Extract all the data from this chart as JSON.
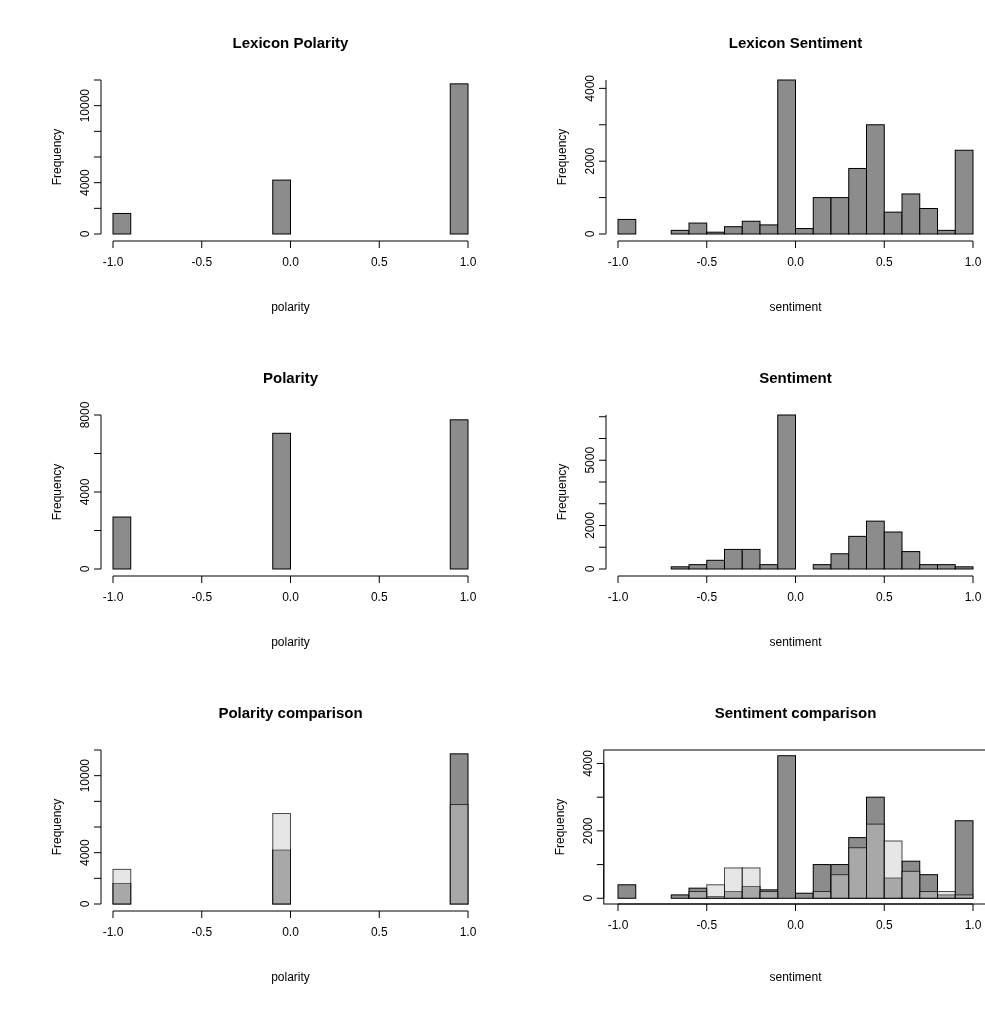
{
  "chart_data": [
    {
      "type": "histogram",
      "title": "Lexicon Polarity",
      "xlabel": "polarity",
      "ylabel": "Frequency",
      "bins": [
        -1,
        -0.9,
        -0.8,
        -0.7,
        -0.6,
        -0.5,
        -0.4,
        -0.3,
        -0.2,
        -0.1,
        0,
        0.1,
        0.2,
        0.3,
        0.4,
        0.5,
        0.6,
        0.7,
        0.8,
        0.9,
        1
      ],
      "values": [
        1600,
        0,
        0,
        0,
        0,
        0,
        0,
        0,
        0,
        4200,
        0,
        0,
        0,
        0,
        0,
        0,
        0,
        0,
        0,
        11700
      ],
      "color": "#8c8c8c",
      "xlim": [
        -1,
        1
      ],
      "ylim": [
        0,
        12000
      ],
      "xticks": [
        {
          "value": -1,
          "label": "-1.0"
        },
        {
          "value": -0.5,
          "label": "-0.5"
        },
        {
          "value": 0,
          "label": "0.0"
        },
        {
          "value": 0.5,
          "label": "0.5"
        },
        {
          "value": 1,
          "label": "1.0"
        }
      ],
      "yticks": [
        0,
        {
          "value": 2000,
          "label": null
        },
        4000,
        {
          "value": 6000,
          "label": null
        },
        {
          "value": 8000,
          "label": null
        },
        10000,
        {
          "value": 12000,
          "label": null
        }
      ]
    },
    {
      "type": "histogram",
      "title": "Lexicon Sentiment",
      "xlabel": "sentiment",
      "ylabel": "Frequency",
      "bins": [
        -1,
        -0.9,
        -0.8,
        -0.7,
        -0.6,
        -0.5,
        -0.4,
        -0.3,
        -0.2,
        -0.1,
        0,
        0.1,
        0.2,
        0.3,
        0.4,
        0.5,
        0.6,
        0.7,
        0.8,
        0.9,
        1
      ],
      "values": [
        400,
        0,
        0,
        100,
        300,
        50,
        200,
        350,
        250,
        4230,
        150,
        1000,
        1000,
        1800,
        3000,
        600,
        1100,
        700,
        100,
        2300
      ],
      "color": "#8c8c8c",
      "xlim": [
        -1,
        1
      ],
      "ylim": [
        0,
        4230
      ],
      "xticks": [
        {
          "value": -1,
          "label": "-1.0"
        },
        {
          "value": -0.5,
          "label": "-0.5"
        },
        {
          "value": 0,
          "label": "0.0"
        },
        {
          "value": 0.5,
          "label": "0.5"
        },
        {
          "value": 1,
          "label": "1.0"
        }
      ],
      "yticks": [
        0,
        {
          "value": 1000,
          "label": null
        },
        2000,
        {
          "value": 3000,
          "label": null
        },
        4000
      ]
    },
    {
      "type": "histogram",
      "title": "Polarity",
      "xlabel": "polarity",
      "ylabel": "Frequency",
      "bins": [
        -1,
        -0.9,
        -0.8,
        -0.7,
        -0.6,
        -0.5,
        -0.4,
        -0.3,
        -0.2,
        -0.1,
        0,
        0.1,
        0.2,
        0.3,
        0.4,
        0.5,
        0.6,
        0.7,
        0.8,
        0.9,
        1
      ],
      "values": [
        2700,
        0,
        0,
        0,
        0,
        0,
        0,
        0,
        0,
        7050,
        0,
        0,
        0,
        0,
        0,
        0,
        0,
        0,
        0,
        7750
      ],
      "color": "#8c8c8c",
      "xlim": [
        -1,
        1
      ],
      "ylim": [
        0,
        8000
      ],
      "xticks": [
        {
          "value": -1,
          "label": "-1.0"
        },
        {
          "value": -0.5,
          "label": "-0.5"
        },
        {
          "value": 0,
          "label": "0.0"
        },
        {
          "value": 0.5,
          "label": "0.5"
        },
        {
          "value": 1,
          "label": "1.0"
        }
      ],
      "yticks": [
        0,
        {
          "value": 2000,
          "label": null
        },
        4000,
        {
          "value": 6000,
          "label": null
        },
        8000
      ]
    },
    {
      "type": "histogram",
      "title": "Sentiment",
      "xlabel": "sentiment",
      "ylabel": "Frequency",
      "bins": [
        -1,
        -0.9,
        -0.8,
        -0.7,
        -0.6,
        -0.5,
        -0.4,
        -0.3,
        -0.2,
        -0.1,
        0,
        0.1,
        0.2,
        0.3,
        0.4,
        0.5,
        0.6,
        0.7,
        0.8,
        0.9,
        1
      ],
      "values": [
        0,
        0,
        0,
        100,
        200,
        400,
        900,
        900,
        200,
        7080,
        0,
        200,
        700,
        1500,
        2200,
        1700,
        800,
        200,
        200,
        100
      ],
      "color": "#8c8c8c",
      "xlim": [
        -1,
        1
      ],
      "ylim": [
        0,
        7080
      ],
      "xticks": [
        {
          "value": -1,
          "label": "-1.0"
        },
        {
          "value": -0.5,
          "label": "-0.5"
        },
        {
          "value": 0,
          "label": "0.0"
        },
        {
          "value": 0.5,
          "label": "0.5"
        },
        {
          "value": 1,
          "label": "1.0"
        }
      ],
      "yticks": [
        0,
        {
          "value": 1000,
          "label": null
        },
        2000,
        {
          "value": 3000,
          "label": null
        },
        {
          "value": 4000,
          "label": null
        },
        5000,
        {
          "value": 6000,
          "label": null
        },
        {
          "value": 7000,
          "label": null
        }
      ]
    },
    {
      "type": "histogram",
      "title": "Polarity comparison",
      "xlabel": "polarity",
      "ylabel": "Frequency",
      "bins": [
        -1,
        -0.9,
        -0.8,
        -0.7,
        -0.6,
        -0.5,
        -0.4,
        -0.3,
        -0.2,
        -0.1,
        0,
        0.1,
        0.2,
        0.3,
        0.4,
        0.5,
        0.6,
        0.7,
        0.8,
        0.9,
        1
      ],
      "series": [
        {
          "color": "#8c8c8c",
          "values": [
            1600,
            0,
            0,
            0,
            0,
            0,
            0,
            0,
            0,
            4200,
            0,
            0,
            0,
            0,
            0,
            0,
            0,
            0,
            0,
            11700
          ]
        },
        {
          "color": "#c8c8c8",
          "values": [
            2700,
            0,
            0,
            0,
            0,
            0,
            0,
            0,
            0,
            7050,
            0,
            0,
            0,
            0,
            0,
            0,
            0,
            0,
            0,
            7750
          ]
        }
      ],
      "xlim": [
        -1,
        1
      ],
      "ylim": [
        0,
        12000
      ],
      "xticks": [
        {
          "value": -1,
          "label": "-1.0"
        },
        {
          "value": -0.5,
          "label": "-0.5"
        },
        {
          "value": 0,
          "label": "0.0"
        },
        {
          "value": 0.5,
          "label": "0.5"
        },
        {
          "value": 1,
          "label": "1.0"
        }
      ],
      "yticks": [
        0,
        {
          "value": 2000,
          "label": null
        },
        4000,
        {
          "value": 6000,
          "label": null
        },
        {
          "value": 8000,
          "label": null
        },
        10000,
        {
          "value": 12000,
          "label": null
        }
      ]
    },
    {
      "type": "histogram",
      "title": "Sentiment comparison",
      "xlabel": "sentiment",
      "ylabel": "Frequency",
      "bins": [
        -1,
        -0.9,
        -0.8,
        -0.7,
        -0.6,
        -0.5,
        -0.4,
        -0.3,
        -0.2,
        -0.1,
        0,
        0.1,
        0.2,
        0.3,
        0.4,
        0.5,
        0.6,
        0.7,
        0.8,
        0.9,
        1
      ],
      "series": [
        {
          "color": "#8c8c8c",
          "values": [
            400,
            0,
            0,
            100,
            300,
            50,
            200,
            350,
            250,
            4230,
            150,
            1000,
            1000,
            1800,
            3000,
            600,
            1100,
            700,
            100,
            2300
          ]
        },
        {
          "color": "#c8c8c8",
          "values": [
            0,
            0,
            0,
            null,
            200,
            400,
            900,
            900,
            200,
            null,
            0,
            200,
            700,
            1500,
            2200,
            1700,
            800,
            200,
            200,
            100
          ]
        }
      ],
      "xlim": [
        -1.08,
        1.08
      ],
      "ylim": [
        -170,
        4400
      ],
      "xticks": [
        {
          "value": -1,
          "label": "-1.0"
        },
        {
          "value": -0.5,
          "label": "-0.5"
        },
        {
          "value": 0,
          "label": "0.0"
        },
        {
          "value": 0.5,
          "label": "0.5"
        },
        {
          "value": 1,
          "label": "1.0"
        }
      ],
      "yticks": [
        0,
        {
          "value": 1000,
          "label": null
        },
        2000,
        {
          "value": 3000,
          "label": null
        },
        4000
      ]
    }
  ]
}
